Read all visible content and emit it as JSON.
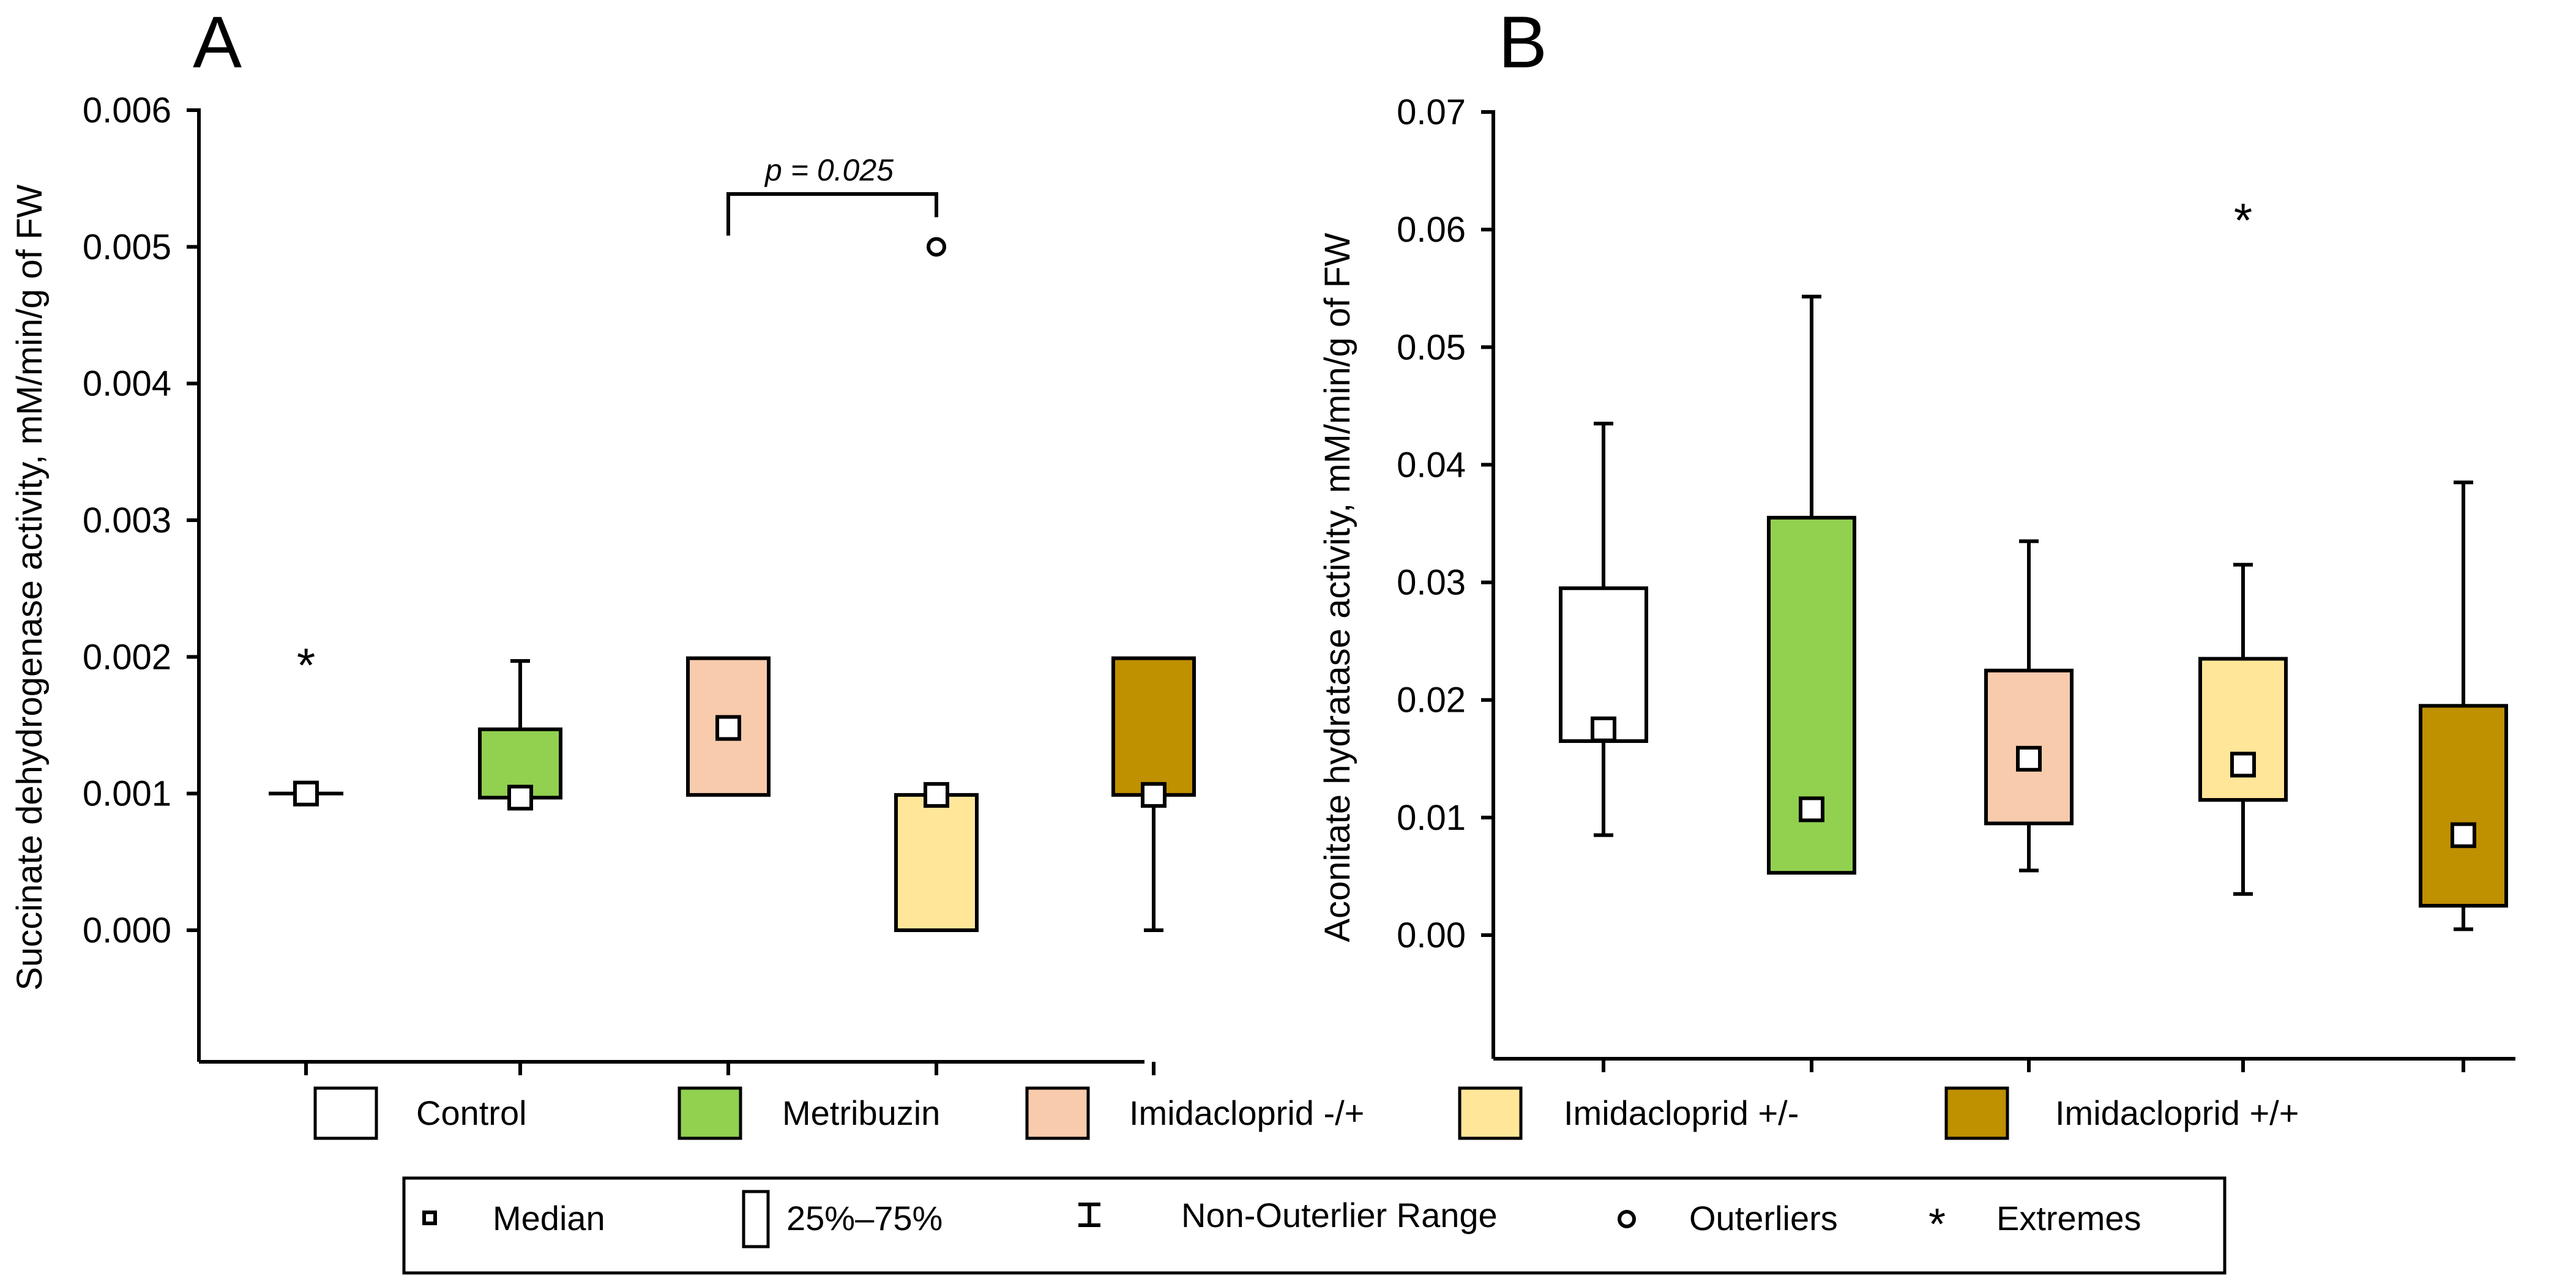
{
  "chart_data": [
    {
      "type": "boxplot",
      "panel_label": "A",
      "ylabel": "Succinate dehydrogenase activity, mM/min/g of FW",
      "ylim": [
        -0.001,
        0.006
      ],
      "yticks": [
        0.0,
        0.001,
        0.002,
        0.003,
        0.004,
        0.005,
        0.006
      ],
      "ytick_labels": [
        "0.000",
        "0.001",
        "0.002",
        "0.003",
        "0.004",
        "0.005",
        "0.006"
      ],
      "annotation": {
        "text": "p = 0.025",
        "from_group": 2,
        "to_group": 3
      },
      "groups": [
        {
          "name": "Control",
          "color": "#ffffff",
          "median": 0.001,
          "q1": 0.001,
          "q3": 0.001,
          "whisker_low": 0.001,
          "whisker_high": 0.001,
          "outliers": [],
          "extremes": [
            0.002
          ]
        },
        {
          "name": "Metribuzin",
          "color": "#92d050",
          "median": 0.00097,
          "q1": 0.00097,
          "q3": 0.00147,
          "whisker_low": 0.00097,
          "whisker_high": 0.00197,
          "outliers": [],
          "extremes": []
        },
        {
          "name": "Imidacloprid -/+",
          "color": "#f8cbad",
          "median": 0.00148,
          "q1": 0.00099,
          "q3": 0.00199,
          "whisker_low": 0.00099,
          "whisker_high": 0.00199,
          "outliers": [],
          "extremes": []
        },
        {
          "name": "Imidacloprid +/-",
          "color": "#ffe699",
          "median": 0.00099,
          "q1": 0.0,
          "q3": 0.00099,
          "whisker_low": 0.0,
          "whisker_high": 0.00099,
          "outliers": [
            0.005
          ],
          "extremes": []
        },
        {
          "name": "Imidacloprid +/+",
          "color": "#bf9000",
          "median": 0.00099,
          "q1": 0.00099,
          "q3": 0.00199,
          "whisker_low": 0.0,
          "whisker_high": 0.00199,
          "outliers": [],
          "extremes": []
        }
      ]
    },
    {
      "type": "boxplot",
      "panel_label": "B",
      "ylabel": "Aconitate hydratase activity, mM/min/g of FW",
      "ylim": [
        -0.01,
        0.07
      ],
      "yticks": [
        0.0,
        0.01,
        0.02,
        0.03,
        0.04,
        0.05,
        0.06,
        0.07
      ],
      "ytick_labels": [
        "0.00",
        "0.01",
        "0.02",
        "0.03",
        "0.04",
        "0.05",
        "0.06",
        "0.07"
      ],
      "groups": [
        {
          "name": "Control",
          "color": "#ffffff",
          "median": 0.0175,
          "q1": 0.0165,
          "q3": 0.0295,
          "whisker_low": 0.0085,
          "whisker_high": 0.0435,
          "outliers": [],
          "extremes": []
        },
        {
          "name": "Metribuzin",
          "color": "#92d050",
          "median": 0.0107,
          "q1": 0.0053,
          "q3": 0.0355,
          "whisker_low": 0.0053,
          "whisker_high": 0.0543,
          "outliers": [],
          "extremes": []
        },
        {
          "name": "Imidacloprid -/+",
          "color": "#f8cbad",
          "median": 0.015,
          "q1": 0.0095,
          "q3": 0.0225,
          "whisker_low": 0.0055,
          "whisker_high": 0.0335,
          "outliers": [],
          "extremes": []
        },
        {
          "name": "Imidacloprid +/-",
          "color": "#ffe699",
          "median": 0.0145,
          "q1": 0.0115,
          "q3": 0.0235,
          "whisker_low": 0.0035,
          "whisker_high": 0.0315,
          "outliers": [],
          "extremes": [
            0.0615
          ]
        },
        {
          "name": "Imidacloprid +/+",
          "color": "#bf9000",
          "median": 0.0085,
          "q1": 0.0025,
          "q3": 0.0195,
          "whisker_low": 0.0005,
          "whisker_high": 0.0385,
          "outliers": [],
          "extremes": []
        }
      ]
    }
  ],
  "legend": {
    "groups": [
      {
        "label": "Control",
        "color": "#ffffff"
      },
      {
        "label": "Metribuzin",
        "color": "#92d050"
      },
      {
        "label": "Imidacloprid -/+",
        "color": "#f8cbad"
      },
      {
        "label": "Imidacloprid +/-",
        "color": "#ffe699"
      },
      {
        "label": "Imidacloprid +/+",
        "color": "#bf9000"
      }
    ],
    "stats": {
      "median": "Median",
      "box": "25%–75%",
      "range": "Non-Outerlier Range",
      "outliers": "Outerliers",
      "extremes": "Extremes"
    }
  }
}
